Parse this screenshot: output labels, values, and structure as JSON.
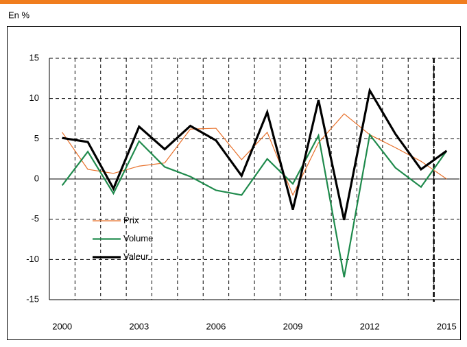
{
  "chart_data": {
    "type": "line",
    "unit_label": "En %",
    "x": [
      2000,
      2001,
      2002,
      2003,
      2004,
      2005,
      2006,
      2007,
      2008,
      2009,
      2010,
      2011,
      2012,
      2013,
      2014,
      2015
    ],
    "series": [
      {
        "name": "Prix",
        "color": "#e8702a",
        "width": 1.2,
        "values": [
          5.8,
          1.2,
          0.7,
          1.6,
          2.0,
          6.2,
          6.3,
          2.4,
          5.8,
          -2.0,
          4.5,
          8.1,
          5.5,
          3.9,
          2.2,
          0.0
        ]
      },
      {
        "name": "Volume",
        "color": "#1f8a4c",
        "width": 2.2,
        "values": [
          -0.8,
          3.4,
          -1.8,
          4.7,
          1.5,
          0.3,
          -1.4,
          -2.0,
          2.5,
          -0.6,
          5.4,
          -12.2,
          5.5,
          1.4,
          -1.0,
          3.5
        ]
      },
      {
        "name": "Valeur",
        "color": "#000000",
        "width": 3.2,
        "values": [
          5.1,
          4.6,
          -1.2,
          6.5,
          3.7,
          6.6,
          4.8,
          0.4,
          8.3,
          -3.8,
          9.8,
          -5.1,
          11.0,
          5.6,
          1.2,
          3.5
        ]
      }
    ],
    "xlim": [
      1999.5,
      2015.5
    ],
    "xticks": [
      2000,
      2003,
      2006,
      2009,
      2012,
      2015
    ],
    "ylim": [
      -15,
      15
    ],
    "yticks": [
      -15,
      -10,
      -5,
      0,
      5,
      10,
      15
    ],
    "divider": 2014.5,
    "grid": true,
    "legend": "lower-left"
  }
}
